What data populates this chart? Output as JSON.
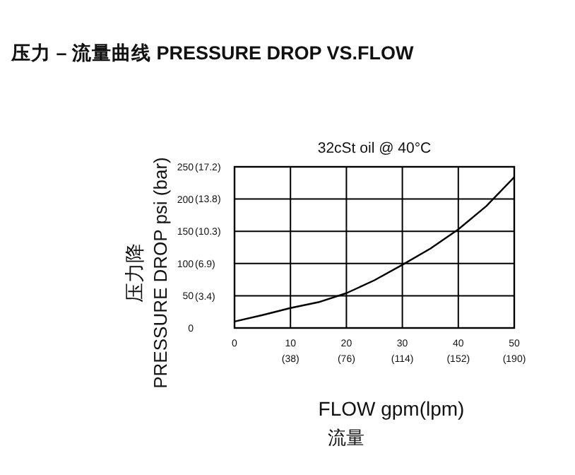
{
  "chart_data": {
    "type": "line",
    "title": "压力 – 流量曲线 PRESSURE DROP VS.FLOW",
    "subtitle": "32cSt oil @ 40°C",
    "xlabel": "FLOW gpm(lpm)\n流量",
    "ylabel": "压力降\nPRESSURE DROP psi (bar)",
    "x": [
      0,
      5,
      10,
      15,
      20,
      25,
      30,
      35,
      40,
      45,
      50
    ],
    "series": [
      {
        "color": "#000000",
        "values": [
          10,
          20,
          31,
          40,
          54,
          74,
          98,
          123,
          153,
          189,
          234
        ]
      }
    ],
    "xlim": [
      0,
      50
    ],
    "ylim": [
      0,
      250
    ],
    "xticks": [
      0,
      10,
      20,
      30,
      40,
      50
    ],
    "yticks": [
      0,
      50,
      100,
      150,
      200,
      250
    ],
    "x2lim": [
      0,
      190
    ],
    "x2ticks": [
      {
        "value": 38,
        "label": "(38)"
      },
      {
        "value": 76,
        "label": "(76)"
      },
      {
        "value": 114,
        "label": "(114)"
      },
      {
        "value": 152,
        "label": "(152)"
      },
      {
        "value": 190,
        "label": "(190)"
      }
    ],
    "y2lim": [
      0,
      17.2
    ],
    "y2ticks": [
      {
        "value": 3.4,
        "label": "(3.4)"
      },
      {
        "value": 6.9,
        "label": "(6.9)"
      },
      {
        "value": 10.3,
        "label": "(10.3)"
      },
      {
        "value": 13.8,
        "label": "(13.8)"
      },
      {
        "value": 17.2,
        "label": "(17.2)"
      }
    ],
    "grid": true,
    "marker": "none",
    "line_style": "solid"
  }
}
